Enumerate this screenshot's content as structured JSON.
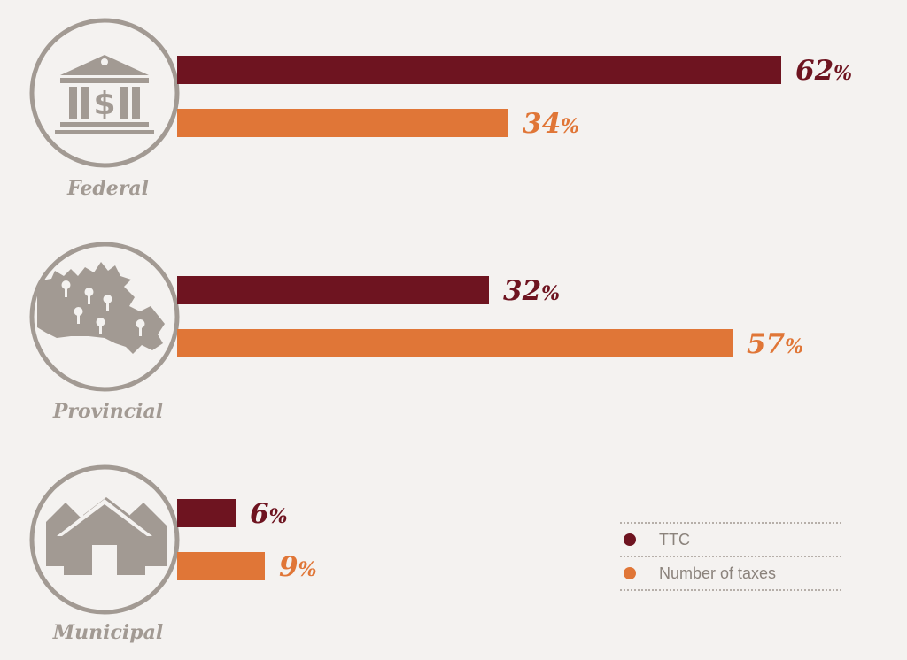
{
  "chart_data": {
    "type": "bar",
    "orientation": "horizontal",
    "categories": [
      "Federal",
      "Provincial",
      "Municipal"
    ],
    "series": [
      {
        "name": "TTC",
        "values": [
          62,
          32,
          6
        ],
        "color": "#6e1420"
      },
      {
        "name": "Number of taxes",
        "values": [
          34,
          57,
          9
        ],
        "color": "#e07637"
      }
    ],
    "unit": "%",
    "xlim": [
      0,
      62
    ],
    "grid": false,
    "legend_position": "bottom-right"
  },
  "icons": [
    "bank-building-icon",
    "canada-map-icon",
    "houses-icon"
  ],
  "colors": {
    "background": "#f4f2f0",
    "icon": "#a29a93",
    "label": "#a29a93",
    "legend_text": "#8b837c"
  }
}
